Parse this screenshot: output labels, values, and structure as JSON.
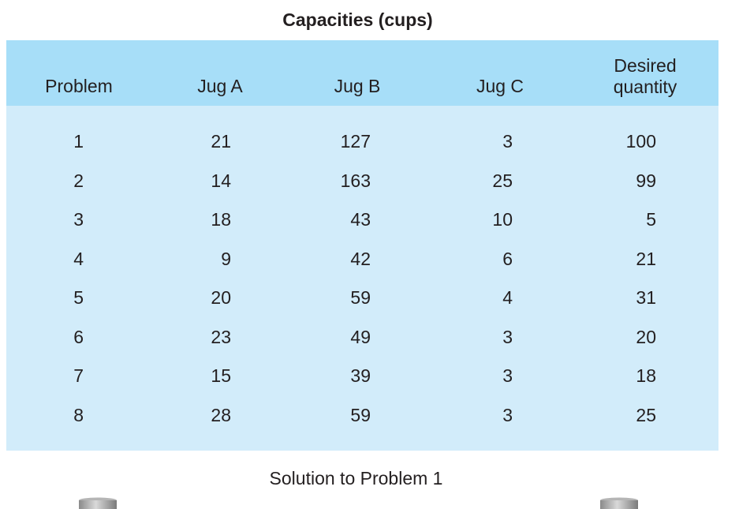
{
  "title": "Capacities (cups)",
  "columns": [
    "Problem",
    "Jug A",
    "Jug B",
    "Jug C",
    "Desired quantity"
  ],
  "desired_header_lines": [
    "Desired",
    "quantity"
  ],
  "rows": [
    [
      "1",
      "21",
      "127",
      "3",
      "100"
    ],
    [
      "2",
      "14",
      "163",
      "25",
      "99"
    ],
    [
      "3",
      "18",
      "43",
      "10",
      "5"
    ],
    [
      "4",
      "9",
      "42",
      "6",
      "21"
    ],
    [
      "5",
      "20",
      "59",
      "4",
      "31"
    ],
    [
      "6",
      "23",
      "49",
      "3",
      "20"
    ],
    [
      "7",
      "15",
      "39",
      "3",
      "18"
    ],
    [
      "8",
      "28",
      "59",
      "3",
      "25"
    ]
  ],
  "caption": "Solution to Problem 1",
  "colors": {
    "header_band": "#a7def8",
    "table_body": "#d2ecfa"
  },
  "icons": [
    "jug-icon",
    "jug-icon"
  ]
}
